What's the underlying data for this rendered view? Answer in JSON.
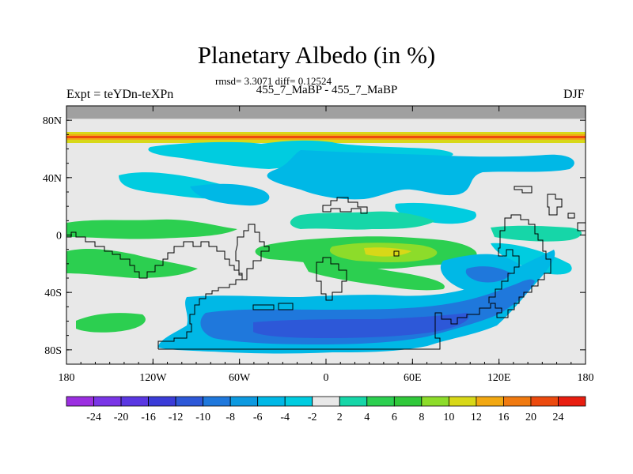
{
  "header": {
    "title": "Planetary Albedo (in %)",
    "stats": "rmsd= 3.3071 diff= 0.12524",
    "subtitle": "455_7_MaBP - 455_7_MaBP",
    "left_label": "Expt = teYDn-teXPn",
    "right_label": "DJF"
  },
  "map": {
    "lon_range": [
      -180,
      180
    ],
    "lat_range": [
      -90,
      90
    ],
    "x_ticks": [
      {
        "lon": -180,
        "label": "180"
      },
      {
        "lon": -120,
        "label": "120W"
      },
      {
        "lon": -60,
        "label": "60W"
      },
      {
        "lon": 0,
        "label": "0"
      },
      {
        "lon": 60,
        "label": "60E"
      },
      {
        "lon": 120,
        "label": "120E"
      },
      {
        "lon": 180,
        "label": "180"
      }
    ],
    "y_ticks": [
      {
        "lat": 80,
        "label": "80N"
      },
      {
        "lat": 40,
        "label": "40N"
      },
      {
        "lat": 0,
        "label": "0"
      },
      {
        "lat": -40,
        "label": "40S"
      },
      {
        "lat": -80,
        "label": "80S"
      }
    ],
    "missing_band_lat": [
      81,
      90
    ],
    "background_color": "#e8e8e8",
    "missing_color": "#a0a0a0"
  },
  "colorbar": {
    "labels": [
      "-24",
      "-20",
      "-16",
      "-12",
      "-10",
      "-8",
      "-6",
      "-4",
      "-2",
      "2",
      "4",
      "6",
      "8",
      "10",
      "12",
      "16",
      "20",
      "24"
    ],
    "colors": [
      "#9b2fe0",
      "#7a35e6",
      "#5a37e2",
      "#3b3cd8",
      "#2d58d8",
      "#1f78dc",
      "#0d9ae0",
      "#00b8e6",
      "#00cce0",
      "#e8e8e8",
      "#16d6a8",
      "#2ccf50",
      "#30c83a",
      "#8ddc2a",
      "#d8d818",
      "#f2a812",
      "#f07a10",
      "#ec4a0e",
      "#e81e10"
    ]
  }
}
